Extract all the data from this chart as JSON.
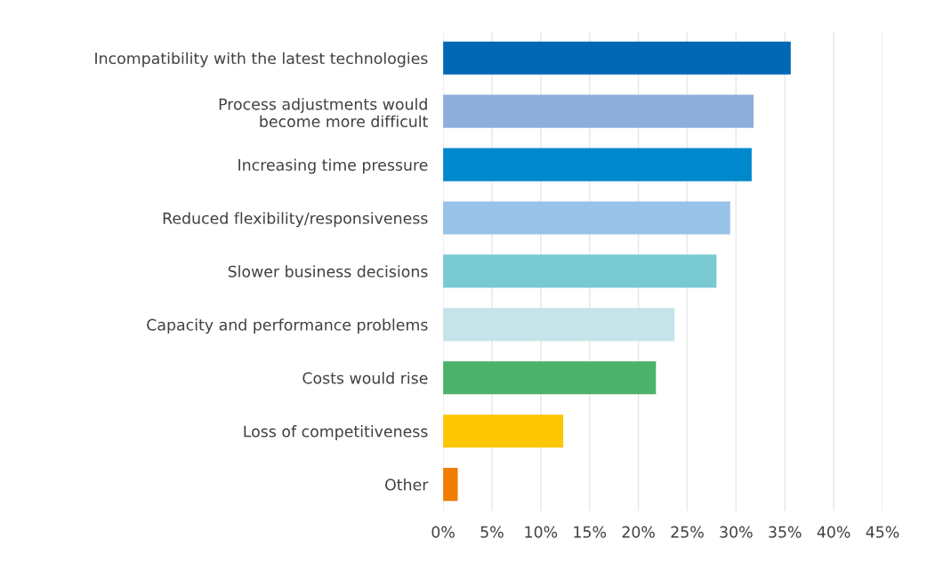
{
  "chart_data": {
    "type": "bar",
    "orientation": "horizontal",
    "categories": [
      "Incompatibility with the latest technologies",
      "Process adjustments would\nbecome more difficult",
      "Increasing time pressure",
      "Reduced flexibility/responsiveness",
      "Slower business decisions",
      "Capacity and performance problems",
      "Costs would rise",
      "Loss of competitiveness",
      "Other"
    ],
    "values": [
      35.6,
      31.8,
      31.6,
      29.4,
      28.0,
      23.7,
      21.8,
      12.3,
      1.5
    ],
    "colors": [
      "#0068b4",
      "#8eaedc",
      "#0088cc",
      "#99c2e8",
      "#78c9d2",
      "#c5e3e8",
      "#4bb36b",
      "#fcc600",
      "#f07d00"
    ],
    "xlim": [
      0,
      45
    ],
    "xticks": [
      {
        "value": 0,
        "label": "0%"
      },
      {
        "value": 5,
        "label": "5%"
      },
      {
        "value": 10,
        "label": "10%"
      },
      {
        "value": 15,
        "label": "15%"
      },
      {
        "value": 20,
        "label": "20%"
      },
      {
        "value": 25,
        "label": "25%"
      },
      {
        "value": 30,
        "label": "30%"
      },
      {
        "value": 35,
        "label": "35%"
      },
      {
        "value": 40,
        "label": "40%"
      },
      {
        "value": 45,
        "label": "45%"
      }
    ],
    "grid": "x"
  }
}
